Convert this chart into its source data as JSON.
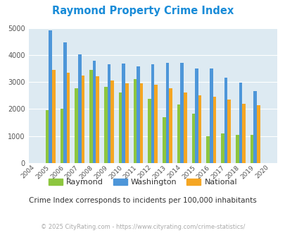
{
  "title": "Raymond Property Crime Index",
  "years": [
    2004,
    2005,
    2006,
    2007,
    2008,
    2009,
    2010,
    2011,
    2012,
    2013,
    2014,
    2015,
    2016,
    2017,
    2018,
    2019,
    2020
  ],
  "raymond": [
    0,
    1950,
    2020,
    2780,
    3450,
    2820,
    2620,
    3120,
    2380,
    1700,
    2160,
    1840,
    1000,
    1100,
    1050,
    1040,
    0
  ],
  "washington": [
    0,
    4900,
    4470,
    4030,
    3780,
    3650,
    3680,
    3580,
    3670,
    3700,
    3700,
    3490,
    3510,
    3170,
    2990,
    2670,
    0
  ],
  "national": [
    0,
    3440,
    3350,
    3250,
    3220,
    3060,
    2950,
    2960,
    2910,
    2760,
    2620,
    2500,
    2460,
    2360,
    2200,
    2140,
    0
  ],
  "raymond_color": "#8dc63f",
  "washington_color": "#4d96d9",
  "national_color": "#f5a623",
  "bg_color": "#ddeaf2",
  "ylim": [
    0,
    5000
  ],
  "yticks": [
    0,
    1000,
    2000,
    3000,
    4000,
    5000
  ],
  "subtitle": "Crime Index corresponds to incidents per 100,000 inhabitants",
  "footer": "© 2025 CityRating.com - https://www.cityrating.com/crime-statistics/",
  "legend_labels": [
    "Raymond",
    "Washington",
    "National"
  ],
  "title_color": "#1a8cd8"
}
